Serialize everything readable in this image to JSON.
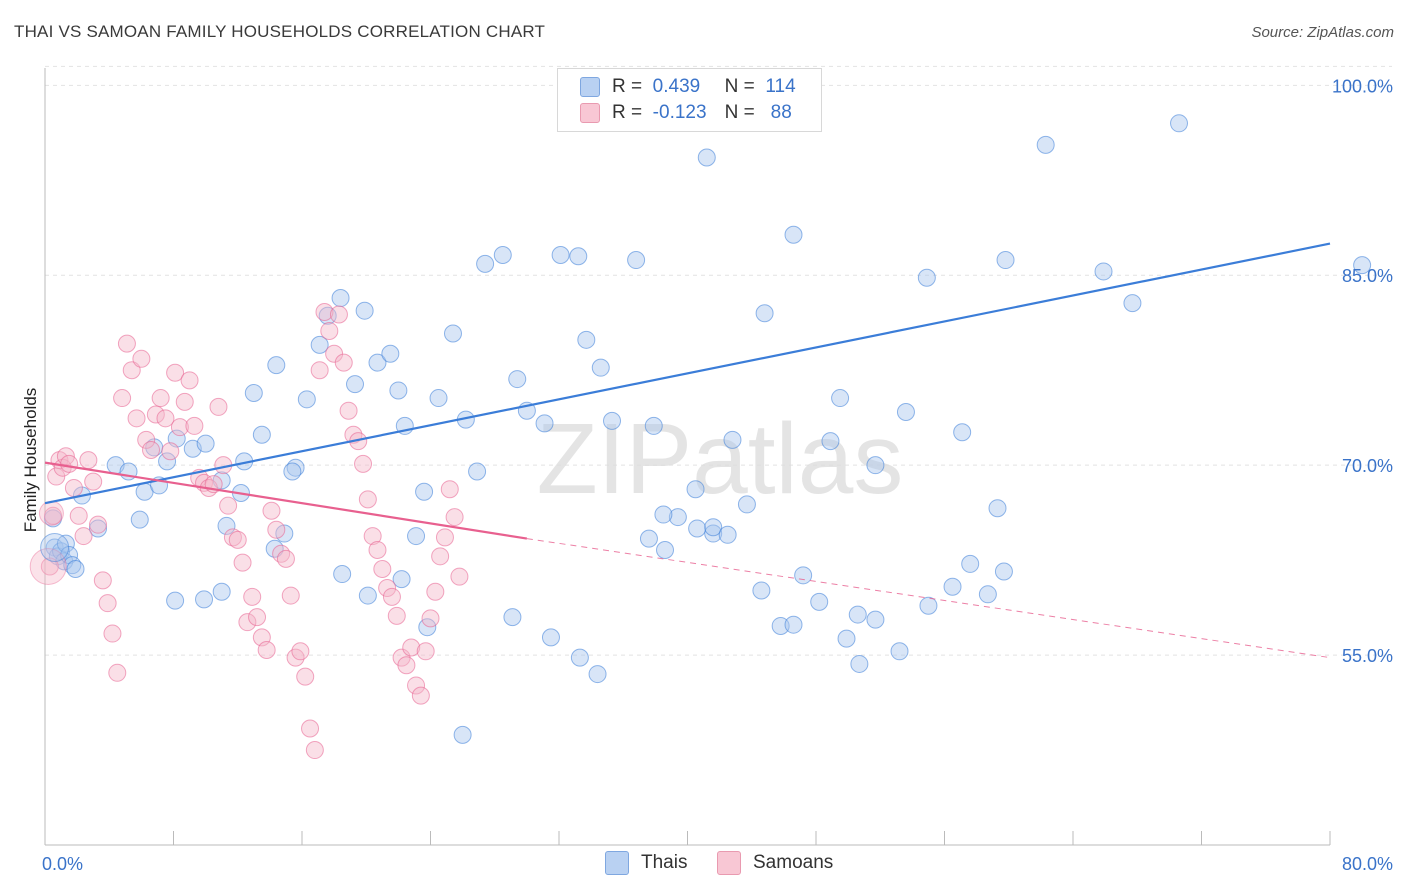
{
  "title": "THAI VS SAMOAN FAMILY HOUSEHOLDS CORRELATION CHART",
  "source": "Source: ZipAtlas.com",
  "watermark": "ZIPatlas",
  "legend": {
    "r_label": "R =",
    "n_label": "N =",
    "series": [
      {
        "r": "0.439",
        "n": "114"
      },
      {
        "r": "-0.123",
        "n": "88"
      }
    ]
  },
  "bottom_legend": [
    "Thais",
    "Samoans"
  ],
  "colors": {
    "blue": "#3b7dd8",
    "pink": "#e8608f",
    "blue_fill": "#a8c6ee",
    "pink_fill": "#f5b7c9"
  },
  "chart_data": {
    "type": "scatter",
    "title": "THAI VS SAMOAN FAMILY HOUSEHOLDS CORRELATION CHART",
    "ylabel": "Family Households",
    "xlabel": "",
    "xlim": [
      0,
      80
    ],
    "ylim": [
      40,
      102
    ],
    "x_tick_labels": [
      "0.0%",
      "80.0%"
    ],
    "y_ticks": [
      55,
      70,
      85,
      100
    ],
    "y_tick_labels": [
      "55.0%",
      "70.0%",
      "85.0%",
      "100.0%"
    ],
    "series": [
      {
        "name": "Thais",
        "trend": {
          "x": [
            0,
            80
          ],
          "y": [
            67.0,
            87.5
          ]
        },
        "points": [
          [
            0.5,
            65.8
          ],
          [
            0.6,
            63.5
          ],
          [
            0.8,
            62.8
          ],
          [
            1.0,
            63.2
          ],
          [
            1.2,
            62.4
          ],
          [
            1.3,
            63.8
          ],
          [
            1.5,
            62.9
          ],
          [
            1.7,
            62.1
          ],
          [
            1.9,
            61.8
          ],
          [
            2.3,
            67.6
          ],
          [
            3.3,
            65.0
          ],
          [
            4.4,
            70.0
          ],
          [
            5.2,
            69.5
          ],
          [
            5.9,
            65.7
          ],
          [
            6.2,
            67.9
          ],
          [
            6.8,
            71.4
          ],
          [
            7.1,
            68.4
          ],
          [
            7.6,
            70.3
          ],
          [
            8.2,
            72.1
          ],
          [
            9.2,
            71.3
          ],
          [
            10.0,
            71.7
          ],
          [
            11.0,
            68.8
          ],
          [
            11.3,
            65.2
          ],
          [
            12.2,
            67.8
          ],
          [
            12.4,
            70.3
          ],
          [
            13.0,
            75.7
          ],
          [
            13.5,
            72.4
          ],
          [
            14.4,
            77.9
          ],
          [
            14.9,
            64.6
          ],
          [
            15.6,
            69.8
          ],
          [
            16.3,
            75.2
          ],
          [
            17.1,
            79.5
          ],
          [
            17.6,
            81.8
          ],
          [
            18.4,
            83.2
          ],
          [
            19.3,
            76.4
          ],
          [
            19.9,
            82.2
          ],
          [
            20.7,
            78.1
          ],
          [
            21.5,
            78.8
          ],
          [
            22.0,
            75.9
          ],
          [
            22.4,
            73.1
          ],
          [
            23.1,
            64.4
          ],
          [
            23.6,
            67.9
          ],
          [
            24.5,
            75.3
          ],
          [
            25.4,
            80.4
          ],
          [
            26.2,
            73.6
          ],
          [
            26.9,
            69.5
          ],
          [
            27.4,
            85.9
          ],
          [
            28.5,
            86.6
          ],
          [
            29.4,
            76.8
          ],
          [
            30.0,
            74.3
          ],
          [
            31.1,
            73.3
          ],
          [
            32.1,
            86.6
          ],
          [
            33.2,
            86.5
          ],
          [
            33.7,
            79.9
          ],
          [
            34.6,
            77.7
          ],
          [
            35.3,
            73.5
          ],
          [
            36.8,
            86.2
          ],
          [
            37.9,
            73.1
          ],
          [
            38.6,
            63.3
          ],
          [
            39.4,
            65.9
          ],
          [
            40.5,
            68.1
          ],
          [
            41.2,
            94.3
          ],
          [
            41.6,
            64.6
          ],
          [
            42.8,
            72.0
          ],
          [
            43.7,
            66.9
          ],
          [
            44.8,
            82.0
          ],
          [
            45.8,
            57.3
          ],
          [
            46.6,
            88.2
          ],
          [
            47.2,
            61.3
          ],
          [
            48.9,
            71.9
          ],
          [
            49.5,
            75.3
          ],
          [
            50.7,
            54.3
          ],
          [
            51.7,
            70.0
          ],
          [
            53.6,
            74.2
          ],
          [
            54.9,
            84.8
          ],
          [
            57.1,
            72.6
          ],
          [
            59.3,
            66.6
          ],
          [
            59.8,
            86.2
          ],
          [
            62.3,
            95.3
          ],
          [
            65.9,
            85.3
          ],
          [
            67.7,
            82.8
          ],
          [
            70.6,
            97.0
          ],
          [
            82.0,
            85.8
          ],
          [
            8.1,
            59.3
          ],
          [
            9.9,
            59.4
          ],
          [
            11.0,
            60.0
          ],
          [
            14.3,
            63.4
          ],
          [
            15.4,
            69.5
          ],
          [
            18.5,
            61.4
          ],
          [
            20.1,
            59.7
          ],
          [
            22.2,
            61.0
          ],
          [
            23.8,
            57.2
          ],
          [
            26.0,
            48.7
          ],
          [
            29.1,
            58.0
          ],
          [
            31.5,
            56.4
          ],
          [
            33.3,
            54.8
          ],
          [
            34.4,
            53.5
          ],
          [
            37.6,
            64.2
          ],
          [
            38.5,
            66.1
          ],
          [
            40.6,
            65.0
          ],
          [
            41.6,
            65.1
          ],
          [
            42.5,
            64.5
          ],
          [
            44.6,
            60.1
          ],
          [
            46.6,
            57.4
          ],
          [
            48.2,
            59.2
          ],
          [
            49.9,
            56.3
          ],
          [
            50.6,
            58.2
          ],
          [
            51.7,
            57.8
          ],
          [
            53.2,
            55.3
          ],
          [
            55.0,
            58.9
          ],
          [
            56.5,
            60.4
          ],
          [
            57.6,
            62.2
          ],
          [
            58.7,
            59.8
          ],
          [
            59.7,
            61.6
          ]
        ]
      },
      {
        "name": "Samoans",
        "trend": {
          "x": [
            0,
            30,
            80
          ],
          "y": [
            70.2,
            64.2,
            54.8
          ],
          "solid_until": 30
        },
        "points": [
          [
            0.3,
            62.0
          ],
          [
            0.5,
            66.0
          ],
          [
            0.7,
            69.1
          ],
          [
            0.9,
            70.4
          ],
          [
            1.1,
            69.8
          ],
          [
            1.3,
            70.7
          ],
          [
            1.5,
            70.1
          ],
          [
            1.8,
            68.2
          ],
          [
            2.1,
            66.0
          ],
          [
            2.4,
            64.4
          ],
          [
            2.7,
            70.4
          ],
          [
            3.0,
            68.7
          ],
          [
            3.3,
            65.3
          ],
          [
            3.6,
            60.9
          ],
          [
            3.9,
            59.1
          ],
          [
            4.2,
            56.7
          ],
          [
            4.5,
            53.6
          ],
          [
            4.8,
            75.3
          ],
          [
            5.1,
            79.6
          ],
          [
            5.4,
            77.5
          ],
          [
            5.7,
            73.7
          ],
          [
            6.0,
            78.4
          ],
          [
            6.3,
            72.0
          ],
          [
            6.6,
            71.2
          ],
          [
            6.9,
            74.0
          ],
          [
            7.2,
            75.3
          ],
          [
            7.5,
            73.7
          ],
          [
            7.8,
            71.1
          ],
          [
            8.1,
            77.3
          ],
          [
            8.4,
            73.0
          ],
          [
            8.7,
            75.0
          ],
          [
            9.0,
            76.7
          ],
          [
            9.3,
            73.1
          ],
          [
            9.6,
            69.0
          ],
          [
            9.9,
            68.6
          ],
          [
            10.2,
            68.2
          ],
          [
            10.5,
            68.5
          ],
          [
            10.8,
            74.6
          ],
          [
            11.1,
            70.0
          ],
          [
            11.4,
            66.8
          ],
          [
            11.7,
            64.3
          ],
          [
            12.0,
            64.1
          ],
          [
            12.3,
            62.3
          ],
          [
            12.6,
            57.6
          ],
          [
            12.9,
            59.6
          ],
          [
            13.2,
            58.0
          ],
          [
            13.5,
            56.4
          ],
          [
            13.8,
            55.4
          ],
          [
            14.1,
            66.4
          ],
          [
            14.4,
            64.9
          ],
          [
            14.7,
            63.0
          ],
          [
            15.0,
            62.6
          ],
          [
            15.3,
            59.7
          ],
          [
            15.6,
            54.8
          ],
          [
            15.9,
            55.3
          ],
          [
            16.2,
            53.3
          ],
          [
            16.5,
            49.2
          ],
          [
            16.8,
            47.5
          ],
          [
            17.1,
            77.5
          ],
          [
            17.4,
            82.1
          ],
          [
            17.7,
            80.6
          ],
          [
            18.0,
            78.8
          ],
          [
            18.3,
            81.9
          ],
          [
            18.6,
            78.1
          ],
          [
            18.9,
            74.3
          ],
          [
            19.2,
            72.4
          ],
          [
            19.5,
            71.9
          ],
          [
            19.8,
            70.1
          ],
          [
            20.1,
            67.3
          ],
          [
            20.4,
            64.4
          ],
          [
            20.7,
            63.3
          ],
          [
            21.0,
            61.8
          ],
          [
            21.3,
            60.3
          ],
          [
            21.6,
            59.6
          ],
          [
            21.9,
            58.1
          ],
          [
            22.2,
            54.8
          ],
          [
            22.5,
            54.2
          ],
          [
            22.8,
            55.6
          ],
          [
            23.1,
            52.6
          ],
          [
            23.4,
            51.8
          ],
          [
            23.7,
            55.3
          ],
          [
            24.0,
            57.9
          ],
          [
            24.3,
            60.0
          ],
          [
            24.6,
            62.8
          ],
          [
            24.9,
            64.3
          ],
          [
            25.2,
            68.1
          ],
          [
            25.5,
            65.9
          ],
          [
            25.8,
            61.2
          ]
        ]
      }
    ]
  }
}
